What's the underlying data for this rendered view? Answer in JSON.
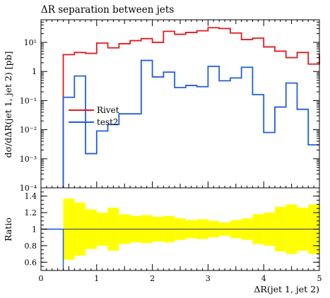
{
  "chart_data": [
    {
      "type": "line",
      "title": "ΔR separation between jets",
      "ylabel": "dσ/dΔR(jet 1, jet 2) [pb]",
      "yscale": "log",
      "ylim": [
        0.0001,
        60
      ],
      "xlim": [
        0,
        5
      ],
      "x_ticks": [
        0,
        1,
        2,
        3,
        4,
        5
      ],
      "y_ticks": [
        {
          "value": 10,
          "label": "10¹"
        },
        {
          "value": 1,
          "label": "1"
        },
        {
          "value": 0.1,
          "label": "10⁻¹"
        },
        {
          "value": 0.01,
          "label": "10⁻²"
        },
        {
          "value": 0.001,
          "label": "10⁻³"
        },
        {
          "value": 0.0001,
          "label": "10⁻⁴"
        }
      ],
      "legend_position": "middle-left",
      "bin_edges": [
        0.4,
        0.6,
        0.8,
        1.0,
        1.2,
        1.4,
        1.6,
        1.8,
        2.0,
        2.2,
        2.4,
        2.6,
        2.8,
        3.0,
        3.2,
        3.4,
        3.6,
        3.8,
        4.0,
        4.2,
        4.4,
        4.6,
        4.8,
        5.0
      ],
      "series": [
        {
          "name": "Rivet",
          "color": "#e41a1c",
          "values": [
            3.8,
            4.5,
            4.2,
            9.5,
            6.5,
            9.0,
            11.5,
            13.5,
            10.0,
            24.0,
            19.0,
            22.0,
            25.0,
            32.0,
            30.0,
            21.0,
            12.5,
            14.0,
            7.0,
            5.0,
            3.0,
            4.5,
            1.8,
            4.0
          ]
        },
        {
          "name": "test2",
          "color": "#1f5fe0",
          "values": [
            0.13,
            0.7,
            0.0015,
            0.009,
            0.015,
            0.035,
            0.035,
            2.4,
            0.65,
            0.95,
            0.28,
            0.33,
            0.3,
            1.5,
            0.48,
            0.6,
            1.4,
            0.16,
            0.008,
            0.06,
            0.4,
            0.05,
            0.003,
            0.003
          ]
        }
      ]
    },
    {
      "type": "area",
      "ylabel": "Ratio",
      "xlabel": "ΔR(jet 1, jet 2)",
      "xlim": [
        0,
        5
      ],
      "ylim": [
        0.5,
        1.5
      ],
      "x_ticks": [
        0,
        1,
        2,
        3,
        4,
        5
      ],
      "y_ticks": [
        0.6,
        0.8,
        1,
        1.2,
        1.4
      ],
      "band_color": "#ffff00",
      "ratio_line_color": "#555555",
      "band_bin_edges": [
        0.4,
        0.6,
        0.8,
        1.0,
        1.2,
        1.4,
        1.6,
        1.8,
        2.0,
        2.2,
        2.4,
        2.6,
        2.8,
        3.0,
        3.2,
        3.4,
        3.6,
        3.8,
        4.0,
        4.2,
        4.4,
        4.6,
        4.8,
        5.0
      ],
      "band_half_width": [
        0.37,
        0.32,
        0.24,
        0.2,
        0.26,
        0.18,
        0.16,
        0.17,
        0.15,
        0.16,
        0.13,
        0.11,
        0.12,
        0.1,
        0.08,
        0.11,
        0.13,
        0.18,
        0.2,
        0.27,
        0.3,
        0.26,
        0.3,
        0.5
      ]
    }
  ]
}
